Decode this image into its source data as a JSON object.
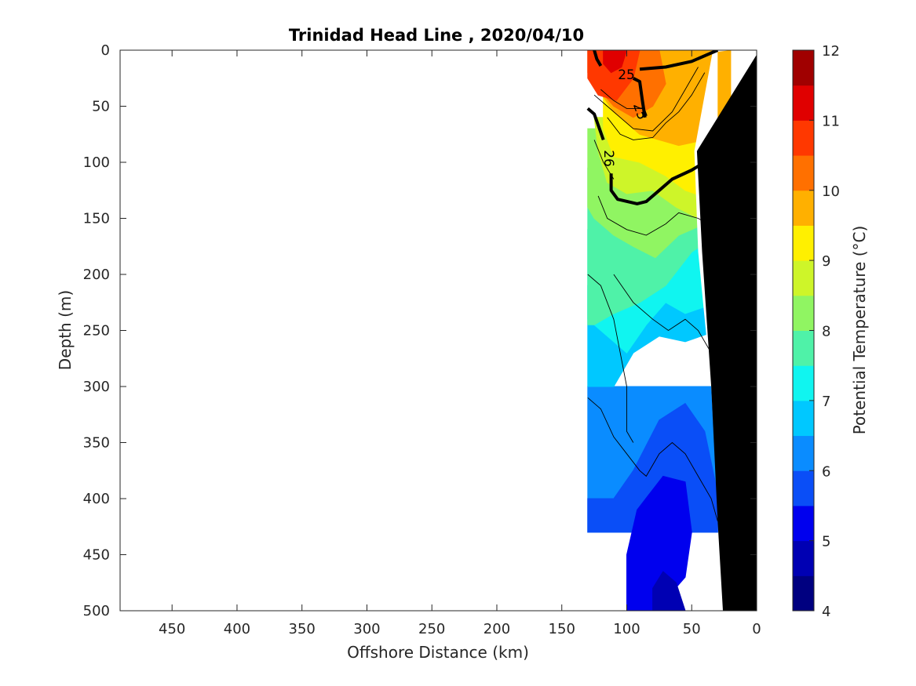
{
  "chart_data": {
    "type": "contour",
    "title": "Trinidad Head Line , 2020/04/10",
    "xlabel": "Offshore Distance (km)",
    "ylabel": "Depth (m)",
    "xlim": [
      490,
      0
    ],
    "x_reversed": true,
    "ylim": [
      500,
      0
    ],
    "y_reversed": true,
    "xticks": [
      "450",
      "400",
      "350",
      "300",
      "250",
      "200",
      "150",
      "100",
      "50",
      "0"
    ],
    "yticks": [
      "0",
      "50",
      "100",
      "150",
      "200",
      "250",
      "300",
      "350",
      "400",
      "450",
      "500"
    ],
    "colorbar": {
      "label": "Potential Temperature (°C)",
      "range": [
        4,
        12
      ],
      "ticks": [
        "4",
        "5",
        "6",
        "7",
        "8",
        "9",
        "10",
        "11",
        "12"
      ],
      "levels": [
        {
          "lo": 4.0,
          "hi": 4.5,
          "color": "#000080"
        },
        {
          "lo": 4.5,
          "hi": 5.0,
          "color": "#0000b3"
        },
        {
          "lo": 5.0,
          "hi": 5.5,
          "color": "#0000ee"
        },
        {
          "lo": 5.5,
          "hi": 6.0,
          "color": "#0a4ef7"
        },
        {
          "lo": 6.0,
          "hi": 6.5,
          "color": "#0a8cff"
        },
        {
          "lo": 6.5,
          "hi": 7.0,
          "color": "#00c8ff"
        },
        {
          "lo": 7.0,
          "hi": 7.5,
          "color": "#10f5f0"
        },
        {
          "lo": 7.5,
          "hi": 8.0,
          "color": "#4ff2a8"
        },
        {
          "lo": 8.0,
          "hi": 8.5,
          "color": "#90f562"
        },
        {
          "lo": 8.5,
          "hi": 9.0,
          "color": "#cef529"
        },
        {
          "lo": 9.0,
          "hi": 9.5,
          "color": "#fff000"
        },
        {
          "lo": 9.5,
          "hi": 10.0,
          "color": "#ffb000"
        },
        {
          "lo": 10.0,
          "hi": 10.5,
          "color": "#ff7000"
        },
        {
          "lo": 10.5,
          "hi": 11.0,
          "color": "#ff3800"
        },
        {
          "lo": 11.0,
          "hi": 11.5,
          "color": "#e00000"
        },
        {
          "lo": 11.5,
          "hi": 12.0,
          "color": "#a00000"
        }
      ]
    },
    "temperature_regions": [
      {
        "temp_c": 6.25,
        "points": [
          [
            130,
            300
          ],
          [
            30,
            300
          ],
          [
            30,
            430
          ],
          [
            130,
            430
          ]
        ]
      },
      {
        "temp_c": 5.75,
        "points": [
          [
            130,
            400
          ],
          [
            110,
            400
          ],
          [
            95,
            375
          ],
          [
            75,
            330
          ],
          [
            55,
            315
          ],
          [
            40,
            340
          ],
          [
            30,
            395
          ],
          [
            30,
            430
          ],
          [
            130,
            430
          ]
        ]
      },
      {
        "temp_c": 5.25,
        "points": [
          [
            100,
            500
          ],
          [
            100,
            450
          ],
          [
            92,
            410
          ],
          [
            72,
            380
          ],
          [
            55,
            385
          ],
          [
            50,
            430
          ],
          [
            55,
            470
          ],
          [
            70,
            490
          ],
          [
            80,
            500
          ]
        ]
      },
      {
        "temp_c": 4.75,
        "points": [
          [
            80,
            500
          ],
          [
            80,
            480
          ],
          [
            72,
            465
          ],
          [
            62,
            475
          ],
          [
            55,
            500
          ]
        ]
      },
      {
        "temp_c": 6.75,
        "points": [
          [
            130,
            210
          ],
          [
            30,
            210
          ],
          [
            30,
            250
          ],
          [
            55,
            260
          ],
          [
            75,
            255
          ],
          [
            95,
            270
          ],
          [
            110,
            300
          ],
          [
            130,
            300
          ]
        ]
      },
      {
        "temp_c": 7.25,
        "points": [
          [
            130,
            160
          ],
          [
            30,
            160
          ],
          [
            30,
            225
          ],
          [
            55,
            235
          ],
          [
            70,
            225
          ],
          [
            85,
            245
          ],
          [
            100,
            270
          ],
          [
            115,
            255
          ],
          [
            130,
            240
          ]
        ]
      },
      {
        "temp_c": 7.75,
        "points": [
          [
            130,
            105
          ],
          [
            30,
            105
          ],
          [
            30,
            165
          ],
          [
            50,
            180
          ],
          [
            70,
            210
          ],
          [
            90,
            225
          ],
          [
            110,
            235
          ],
          [
            125,
            245
          ],
          [
            130,
            245
          ]
        ]
      },
      {
        "temp_c": 8.25,
        "points": [
          [
            130,
            70
          ],
          [
            30,
            70
          ],
          [
            30,
            150
          ],
          [
            60,
            165
          ],
          [
            78,
            185
          ],
          [
            95,
            175
          ],
          [
            110,
            165
          ],
          [
            125,
            150
          ],
          [
            130,
            140
          ]
        ]
      },
      {
        "temp_c": 8.75,
        "points": [
          [
            125,
            60
          ],
          [
            30,
            60
          ],
          [
            30,
            150
          ],
          [
            45,
            150
          ],
          [
            62,
            140
          ],
          [
            80,
            125
          ],
          [
            100,
            128
          ],
          [
            115,
            118
          ],
          [
            122,
            90
          ]
        ]
      },
      {
        "temp_c": 9.25,
        "points": [
          [
            118,
            40
          ],
          [
            30,
            40
          ],
          [
            30,
            135
          ],
          [
            55,
            125
          ],
          [
            70,
            112
          ],
          [
            90,
            100
          ],
          [
            110,
            95
          ],
          [
            118,
            70
          ]
        ]
      },
      {
        "temp_c": 9.75,
        "points": [
          [
            125,
            0
          ],
          [
            20,
            0
          ],
          [
            20,
            70
          ],
          [
            40,
            80
          ],
          [
            60,
            85
          ],
          [
            90,
            75
          ],
          [
            110,
            55
          ],
          [
            125,
            30
          ]
        ]
      },
      {
        "temp_c": 10.25,
        "points": [
          [
            130,
            0
          ],
          [
            75,
            0
          ],
          [
            70,
            30
          ],
          [
            80,
            50
          ],
          [
            95,
            60
          ],
          [
            110,
            50
          ],
          [
            125,
            30
          ],
          [
            130,
            20
          ]
        ]
      },
      {
        "temp_c": 10.75,
        "points": [
          [
            130,
            0
          ],
          [
            90,
            0
          ],
          [
            95,
            25
          ],
          [
            108,
            45
          ],
          [
            122,
            40
          ],
          [
            130,
            25
          ]
        ]
      },
      {
        "temp_c": 11.25,
        "points": [
          [
            118,
            0
          ],
          [
            100,
            0
          ],
          [
            104,
            15
          ],
          [
            112,
            20
          ],
          [
            118,
            12
          ]
        ]
      }
    ],
    "sigma_contours": [
      {
        "label": "25",
        "points": [
          [
            125,
            0
          ],
          [
            123,
            8
          ],
          [
            120,
            14
          ]
        ]
      },
      {
        "label": "25",
        "points": [
          [
            95,
            25
          ],
          [
            90,
            28
          ],
          [
            88,
            45
          ],
          [
            86,
            60
          ]
        ]
      },
      {
        "label": "",
        "points": [
          [
            90,
            17
          ],
          [
            70,
            15
          ],
          [
            50,
            10
          ],
          [
            30,
            0
          ]
        ]
      },
      {
        "label": "26",
        "points": [
          [
            130,
            52
          ],
          [
            125,
            57
          ],
          [
            121,
            70
          ],
          [
            118,
            80
          ]
        ]
      },
      {
        "label": "",
        "points": [
          [
            112,
            110
          ],
          [
            112,
            125
          ],
          [
            107,
            133
          ],
          [
            92,
            137
          ],
          [
            85,
            135
          ],
          [
            75,
            125
          ],
          [
            65,
            115
          ],
          [
            50,
            107
          ],
          [
            40,
            100
          ],
          [
            30,
            90
          ],
          [
            25,
            85
          ],
          [
            20,
            78
          ]
        ]
      }
    ],
    "thin_contours": [
      [
        [
          130,
          200
        ],
        [
          120,
          210
        ],
        [
          110,
          240
        ],
        [
          100,
          300
        ],
        [
          100,
          340
        ],
        [
          95,
          350
        ]
      ],
      [
        [
          130,
          310
        ],
        [
          120,
          320
        ],
        [
          110,
          345
        ],
        [
          100,
          360
        ],
        [
          90,
          375
        ],
        [
          85,
          380
        ],
        [
          75,
          360
        ],
        [
          65,
          350
        ],
        [
          55,
          360
        ],
        [
          45,
          380
        ],
        [
          35,
          400
        ],
        [
          30,
          420
        ]
      ],
      [
        [
          122,
          130
        ],
        [
          115,
          150
        ],
        [
          100,
          160
        ],
        [
          85,
          165
        ],
        [
          70,
          155
        ],
        [
          60,
          145
        ],
        [
          45,
          150
        ],
        [
          30,
          160
        ]
      ],
      [
        [
          110,
          200
        ],
        [
          95,
          225
        ],
        [
          80,
          240
        ],
        [
          68,
          250
        ],
        [
          55,
          240
        ],
        [
          45,
          250
        ],
        [
          35,
          270
        ]
      ],
      [
        [
          125,
          80
        ],
        [
          118,
          100
        ],
        [
          110,
          115
        ]
      ],
      [
        [
          115,
          60
        ],
        [
          105,
          75
        ],
        [
          95,
          80
        ],
        [
          80,
          78
        ],
        [
          70,
          65
        ],
        [
          60,
          55
        ],
        [
          50,
          40
        ],
        [
          40,
          20
        ]
      ],
      [
        [
          120,
          35
        ],
        [
          110,
          45
        ],
        [
          100,
          52
        ],
        [
          90,
          52
        ]
      ],
      [
        [
          125,
          40
        ],
        [
          115,
          50
        ],
        [
          105,
          60
        ],
        [
          95,
          70
        ],
        [
          80,
          72
        ],
        [
          65,
          55
        ],
        [
          55,
          35
        ],
        [
          45,
          15
        ]
      ]
    ],
    "bathymetry": [
      [
        0,
        0
      ],
      [
        -3,
        0
      ],
      [
        -3,
        500
      ],
      [
        26,
        500
      ],
      [
        30,
        420
      ],
      [
        35,
        300
      ],
      [
        42,
        180
      ],
      [
        46,
        90
      ],
      [
        0,
        4
      ]
    ],
    "nodata_columns": [
      [
        20,
        0
      ],
      [
        30,
        0
      ],
      [
        30,
        75
      ],
      [
        30,
        183
      ],
      [
        20,
        190
      ],
      [
        25,
        260
      ],
      [
        20,
        300
      ],
      [
        30,
        460
      ],
      [
        25,
        480
      ],
      [
        20,
        500
      ],
      [
        26,
        500
      ],
      [
        35,
        300
      ],
      [
        45,
        180
      ],
      [
        48,
        90
      ],
      [
        34,
        2
      ]
    ]
  }
}
